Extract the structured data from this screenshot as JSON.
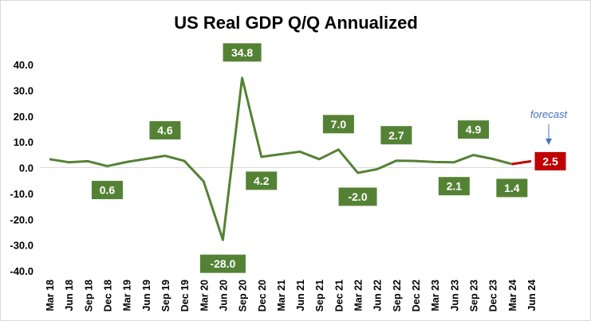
{
  "chart_data": {
    "type": "line",
    "title": "US Real GDP Q/Q Annualized",
    "xlabel": "",
    "ylabel": "",
    "ylim": [
      -40,
      40
    ],
    "yticks": [
      "40.0",
      "30.0",
      "20.0",
      "10.0",
      "0.0",
      "-10.0",
      "-20.0",
      "-30.0",
      "-40.0"
    ],
    "ytick_values": [
      40,
      30,
      20,
      10,
      0,
      -10,
      -20,
      -30,
      -40
    ],
    "grid": false,
    "zero_line": true,
    "categories": [
      "Mar 18",
      "Jun 18",
      "Sep 18",
      "Dec 18",
      "Mar 19",
      "Jun 19",
      "Sep 19",
      "Dec 19",
      "Mar 20",
      "Jun 20",
      "Sep 20",
      "Dec 20",
      "Mar 21",
      "Jun 21",
      "Sep 21",
      "Dec 21",
      "Mar 22",
      "Jun 22",
      "Sep 22",
      "Dec 22",
      "Mar 23",
      "Jun 23",
      "Sep 23",
      "Dec 23",
      "Mar 24",
      "Jun 24"
    ],
    "series": [
      {
        "values": [
          3.3,
          2.1,
          2.5,
          0.6,
          2.2,
          3.4,
          4.6,
          2.6,
          -5.3,
          -28.0,
          34.8,
          4.2,
          5.2,
          6.2,
          3.3,
          7.0,
          -2.0,
          -0.6,
          2.7,
          2.6,
          2.2,
          2.1,
          4.9,
          3.4,
          1.4,
          2.5
        ],
        "color": "#548235",
        "forecast_from_index": 24,
        "forecast_color": "#c00000"
      }
    ],
    "data_labels": [
      {
        "category": "Dec 18",
        "text": "0.6",
        "position": "below"
      },
      {
        "category": "Sep 19",
        "text": "4.6",
        "position": "above"
      },
      {
        "category": "Jun 20",
        "text": "-28.0",
        "position": "below"
      },
      {
        "category": "Sep 20",
        "text": "34.8",
        "position": "above"
      },
      {
        "category": "Dec 20",
        "text": "4.2",
        "position": "below"
      },
      {
        "category": "Dec 21",
        "text": "7.0",
        "position": "above"
      },
      {
        "category": "Mar 22",
        "text": "-2.0",
        "position": "below"
      },
      {
        "category": "Sep 22",
        "text": "2.7",
        "position": "above"
      },
      {
        "category": "Jun 23",
        "text": "2.1",
        "position": "below"
      },
      {
        "category": "Sep 23",
        "text": "4.9",
        "position": "above"
      },
      {
        "category": "Mar 24",
        "text": "1.4",
        "position": "below"
      },
      {
        "category": "Jun 24",
        "text": "2.5",
        "position": "right",
        "forecast": true
      }
    ],
    "annotation": {
      "text": "forecast",
      "target": "Jun 24",
      "color": "#4472c4"
    }
  }
}
